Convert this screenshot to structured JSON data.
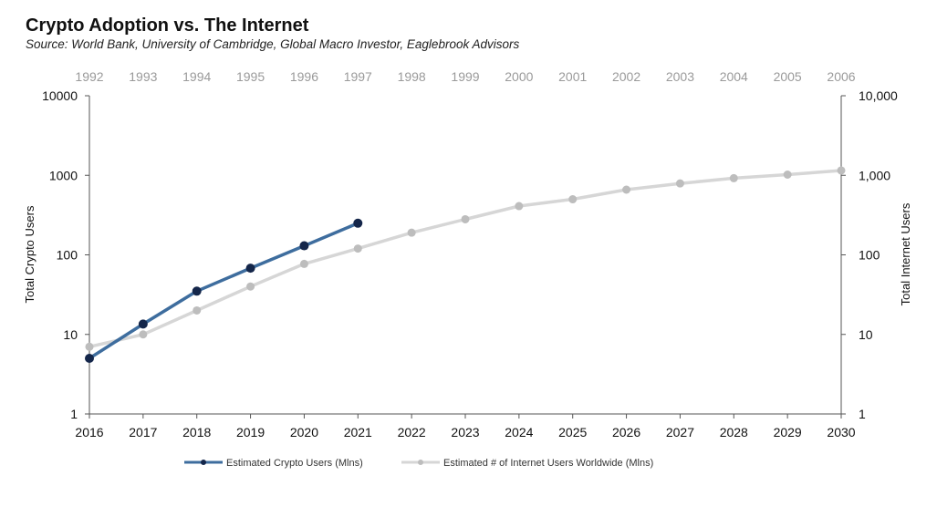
{
  "chart_data": {
    "type": "line",
    "title": "Crypto Adoption vs. The Internet",
    "subtitle": "Source: World Bank, University of Cambridge, Global Macro Investor, Eaglebrook Advisors",
    "x_bottom": {
      "categories": [
        "2016",
        "2017",
        "2018",
        "2019",
        "2020",
        "2021",
        "2022",
        "2023",
        "2024",
        "2025",
        "2026",
        "2027",
        "2028",
        "2029",
        "2030"
      ]
    },
    "x_top": {
      "categories": [
        "1992",
        "1993",
        "1994",
        "1995",
        "1996",
        "1997",
        "1998",
        "1999",
        "2000",
        "2001",
        "2002",
        "2003",
        "2004",
        "2005",
        "2006"
      ]
    },
    "y_left": {
      "label": "Total Crypto Users",
      "scale": "log",
      "ylim": [
        1,
        10000
      ],
      "ticks": [
        1,
        10,
        100,
        1000,
        10000
      ],
      "tick_labels": [
        "1",
        "10",
        "100",
        "1000",
        "10000"
      ]
    },
    "y_right": {
      "label": "Total Internet Users",
      "scale": "log",
      "ylim": [
        1,
        10000
      ],
      "ticks": [
        1,
        10,
        100,
        1000,
        10000
      ],
      "tick_labels": [
        "1",
        "10",
        "100",
        "1,000",
        "10,000"
      ]
    },
    "series": [
      {
        "name": "Estimated Crypto Users (Mlns)",
        "color": "#3e6d9e",
        "marker_color": "#14264a",
        "x_axis": "bottom",
        "x": [
          "2016",
          "2017",
          "2018",
          "2019",
          "2020",
          "2021"
        ],
        "values": [
          5,
          13.5,
          35,
          68,
          130,
          250
        ]
      },
      {
        "name": "Estimated # of Internet Users Worldwide (Mlns)",
        "color": "#d6d6d6",
        "marker_color": "#bdbdbd",
        "x_axis": "top",
        "x": [
          "1992",
          "1993",
          "1994",
          "1995",
          "1996",
          "1997",
          "1998",
          "1999",
          "2000",
          "2001",
          "2002",
          "2003",
          "2004",
          "2005",
          "2006"
        ],
        "values": [
          7,
          10,
          20,
          40,
          77,
          120,
          190,
          280,
          410,
          500,
          660,
          790,
          920,
          1020,
          1150
        ]
      }
    ],
    "grid": false,
    "legend": "bottom"
  }
}
